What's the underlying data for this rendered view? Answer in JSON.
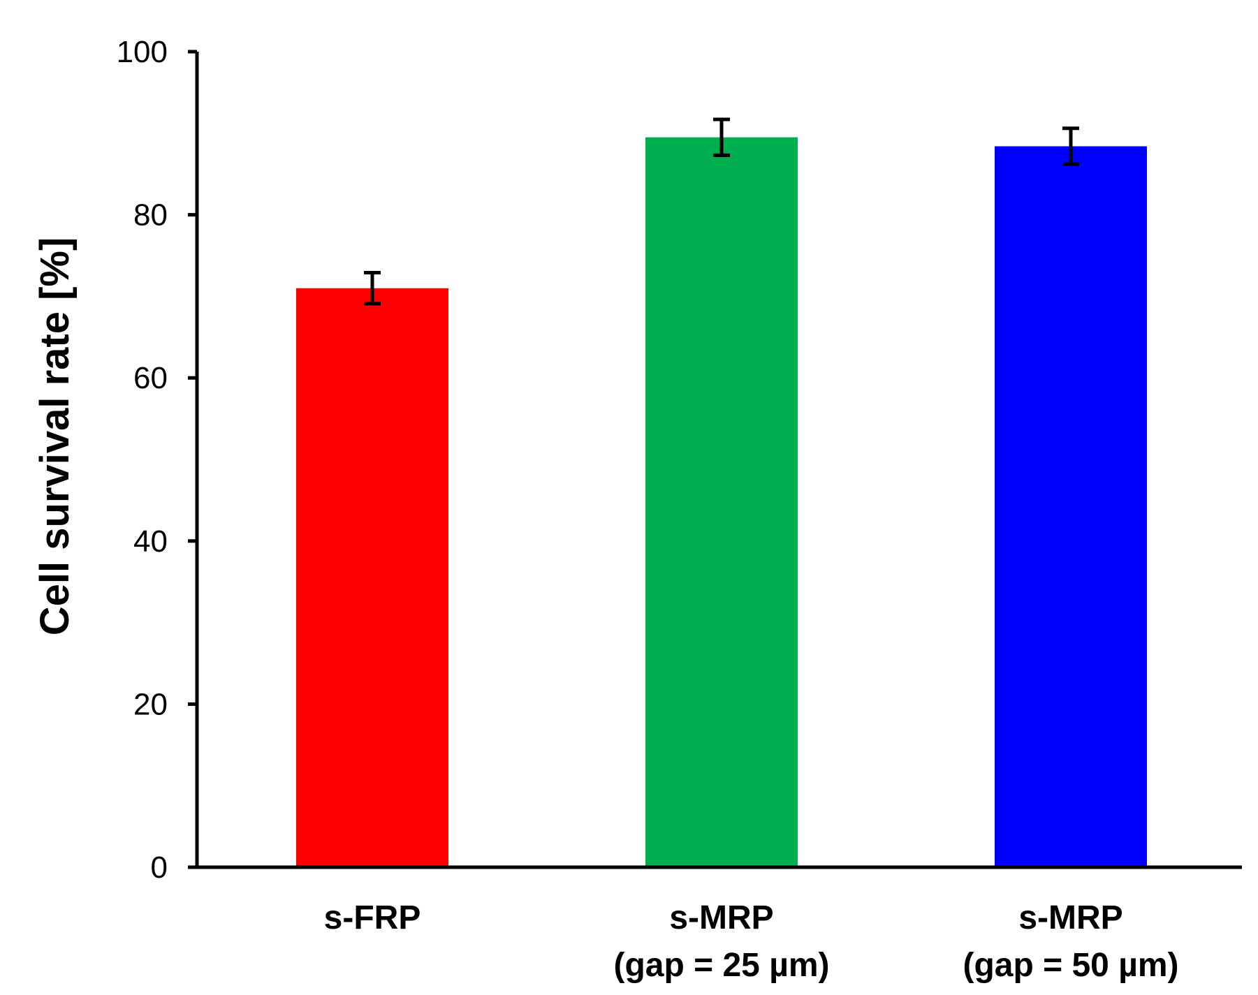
{
  "chart_data": {
    "type": "bar",
    "title": "",
    "xlabel": "",
    "ylabel": "Cell survival rate [%]",
    "ylim": [
      0,
      100
    ],
    "yticks": [
      0,
      20,
      40,
      60,
      80,
      100
    ],
    "ytick_labels": [
      "0",
      "20",
      "40",
      "60",
      "80",
      "100"
    ],
    "grid": false,
    "categories": [
      {
        "line1": "s-FRP",
        "line2": ""
      },
      {
        "line1": "s-MRP",
        "line2": "(gap = 25 µm)"
      },
      {
        "line1": "s-MRP",
        "line2": "(gap = 50 µm)"
      }
    ],
    "values": [
      71,
      89.5,
      88.4
    ],
    "errors": [
      1.9,
      2.2,
      2.2
    ],
    "colors": [
      "#ff0000",
      "#00b050",
      "#0000ff"
    ]
  }
}
